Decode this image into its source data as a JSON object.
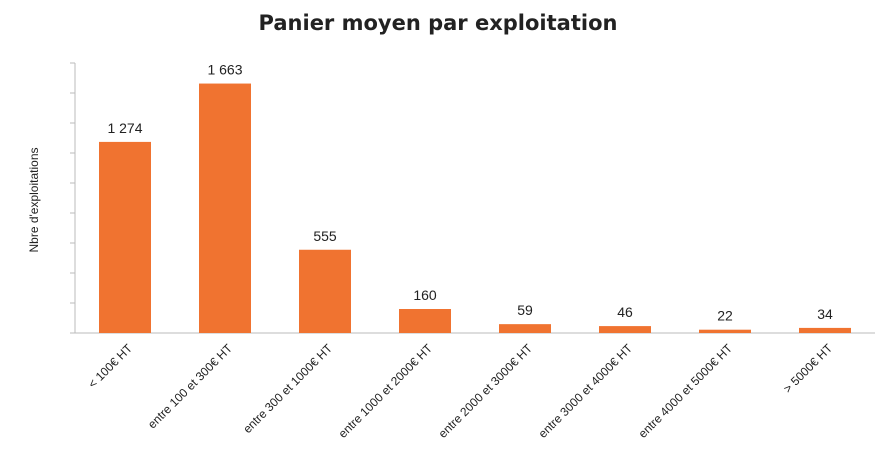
{
  "chart_data": {
    "type": "bar",
    "title": "Panier moyen par exploitation",
    "y_label": "Nbre d'exploitations",
    "categories": [
      "< 100€ HT",
      "entre 100 et 300€ HT",
      "entre 300 et 1000€ HT",
      "entre 1000 et 2000€ HT",
      "entre 2000 et 3000€ HT",
      "entre 3000 et 4000€ HT",
      "entre 4000 et 5000€ HT",
      "> 5000€ HT"
    ],
    "values": [
      1274,
      1663,
      555,
      160,
      59,
      46,
      22,
      34
    ],
    "value_labels": [
      "1 274",
      "1 663",
      "555",
      "160",
      "59",
      "46",
      "22",
      "34"
    ],
    "color": "#f07330",
    "ylim": [
      0,
      1800
    ],
    "yticks": [
      0,
      200,
      400,
      600,
      800,
      1000,
      1200,
      1400,
      1600,
      1800
    ],
    "grid": false
  }
}
